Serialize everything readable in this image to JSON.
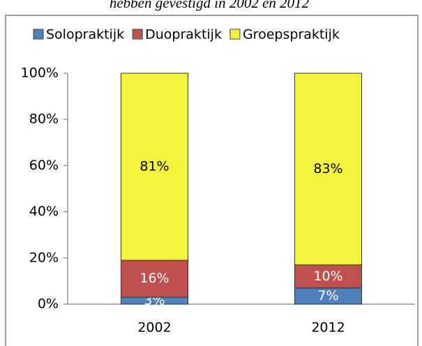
{
  "chart_data": {
    "type": "stacked_bar",
    "title": "hebben gevestigd in 2002 en 2012",
    "categories": [
      "2002",
      "2012"
    ],
    "series": [
      {
        "name": "Solopraktijk",
        "color": "#4f81bd",
        "label_color": "#ffffff",
        "values": [
          3,
          7
        ],
        "value_labels": [
          "3%",
          "7%"
        ]
      },
      {
        "name": "Duopraktijk",
        "color": "#c0504d",
        "label_color": "#ffffff",
        "values": [
          16,
          10
        ],
        "value_labels": [
          "16%",
          "10%"
        ]
      },
      {
        "name": "Groepspraktijk",
        "color": "#f4f43c",
        "label_color": "#000000",
        "values": [
          81,
          83
        ],
        "value_labels": [
          "81%",
          "83%"
        ]
      }
    ],
    "ylim": [
      0,
      100
    ],
    "yticks": [
      {
        "value": 0,
        "label": "0%"
      },
      {
        "value": 20,
        "label": "20%"
      },
      {
        "value": 40,
        "label": "40%"
      },
      {
        "value": 60,
        "label": "60%"
      },
      {
        "value": 80,
        "label": "80%"
      },
      {
        "value": 100,
        "label": "100%"
      }
    ],
    "legend": "top",
    "grid": false
  }
}
